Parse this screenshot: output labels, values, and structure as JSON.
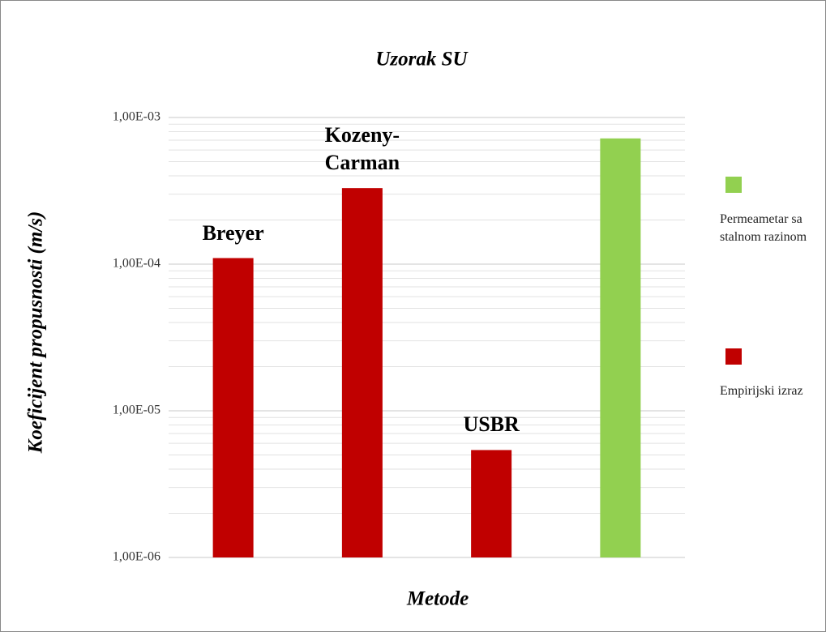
{
  "chart_data": {
    "type": "bar",
    "title": "Uzorak SU",
    "x_label": "Metode",
    "y_label": "Koeficijent propusnosti (m/s)",
    "categories": [
      "Breyer",
      "Kozeny-\nCarman",
      "USBR",
      null
    ],
    "series": [
      {
        "name": "Permeametar sa stalnom razinom",
        "color": "#92d050",
        "values": [
          null,
          null,
          null,
          0.00072
        ]
      },
      {
        "name": "Empirijski izraz",
        "color": "#c00000",
        "values": [
          0.00011,
          0.00033,
          5.4e-06,
          null
        ]
      }
    ],
    "log_y": true,
    "ylim": [
      1e-06,
      0.001
    ],
    "yticks": [
      {
        "value": 1e-06,
        "label": "1,00E-06"
      },
      {
        "value": 1e-05,
        "label": "1,00E-05"
      },
      {
        "value": 0.0001,
        "label": "1,00E-04"
      },
      {
        "value": 0.001,
        "label": "1,00E-03"
      }
    ],
    "minor_yticks": [
      2e-06,
      3e-06,
      4e-06,
      5e-06,
      6e-06,
      7e-06,
      8e-06,
      9e-06,
      2e-05,
      3e-05,
      4e-05,
      5e-05,
      6e-05,
      7e-05,
      8e-05,
      9e-05,
      0.0002,
      0.0003,
      0.0004,
      0.0005,
      0.0006,
      0.0007,
      0.0008,
      0.0009
    ],
    "grid": true,
    "legend": "right"
  }
}
